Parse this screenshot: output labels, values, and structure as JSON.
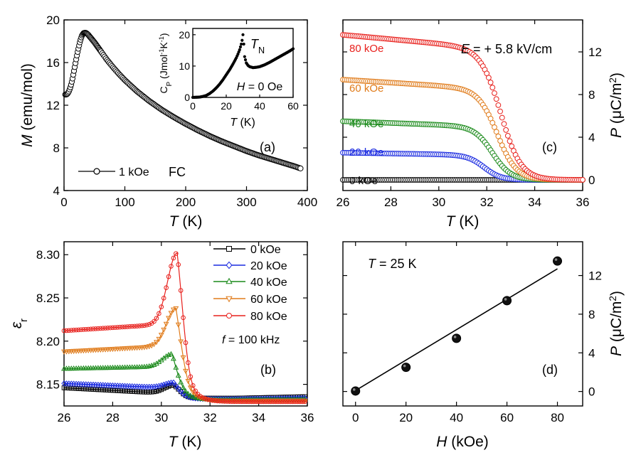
{
  "chart_data": [
    {
      "type": "scatter",
      "panel": "(a)",
      "xlabel": "T (K)",
      "ylabel": "M (emu/mol)",
      "xlim": [
        0,
        400
      ],
      "ylim": [
        4,
        20
      ],
      "xticks": [
        0,
        100,
        200,
        300,
        400
      ],
      "yticks": [
        4,
        8,
        12,
        16,
        20
      ],
      "legend": "1 kOe",
      "annotation": "FC",
      "series": [
        {
          "x": [
            2,
            4,
            6,
            8,
            10,
            12,
            14,
            16,
            18,
            20,
            22,
            24,
            26,
            28,
            30,
            32,
            34,
            36,
            38,
            40,
            42,
            45,
            50,
            55,
            60,
            70,
            80,
            90,
            100,
            120,
            140,
            160,
            180,
            200,
            220,
            240,
            260,
            280,
            300,
            320,
            340,
            360,
            380,
            390
          ],
          "y": [
            13.0,
            13.0,
            13.1,
            13.3,
            13.6,
            14.0,
            14.5,
            15.1,
            15.7,
            16.3,
            16.9,
            17.4,
            17.9,
            18.3,
            18.6,
            18.75,
            18.8,
            18.78,
            18.7,
            18.6,
            18.45,
            18.25,
            17.9,
            17.5,
            17.1,
            16.3,
            15.6,
            14.95,
            14.35,
            13.3,
            12.4,
            11.6,
            10.9,
            10.25,
            9.65,
            9.1,
            8.6,
            8.15,
            7.7,
            7.3,
            6.95,
            6.6,
            6.25,
            6.05
          ]
        }
      ]
    },
    {
      "type": "line",
      "panel": "inset",
      "xlabel": "T (K)",
      "ylabel": "C_P (Jmol⁻¹K⁻¹)",
      "xlim": [
        0,
        60
      ],
      "ylim": [
        0,
        22
      ],
      "xticks": [
        0,
        20,
        40,
        60
      ],
      "yticks": [
        0,
        10,
        20
      ],
      "annotations": [
        "T_N",
        "H = 0 Oe"
      ],
      "series": [
        {
          "x": [
            0,
            4,
            6,
            8,
            10,
            12,
            14,
            16,
            18,
            20,
            22,
            24,
            26,
            27,
            28,
            29,
            29.5,
            30,
            30.5,
            31,
            32,
            33,
            34,
            36,
            38,
            40,
            43,
            46,
            50,
            54,
            58,
            60
          ],
          "y": [
            0,
            0.1,
            0.3,
            0.6,
            1.2,
            2.0,
            3.0,
            4.2,
            5.6,
            7.2,
            8.8,
            10.6,
            12.6,
            13.8,
            15.2,
            17.0,
            18.2,
            20.0,
            17.0,
            13.0,
            11.0,
            10.2,
            9.8,
            9.5,
            9.6,
            9.8,
            10.4,
            11.2,
            12.4,
            13.6,
            14.8,
            15.5
          ]
        }
      ]
    },
    {
      "type": "scatter",
      "panel": "(c)",
      "xlabel": "T (K)",
      "ylabel": "P (μC/m²)",
      "xlim": [
        26,
        36
      ],
      "ylim": [
        -1,
        15
      ],
      "xticks": [
        26,
        28,
        30,
        32,
        34,
        36
      ],
      "yticks": [
        0,
        4,
        8,
        12
      ],
      "annotation": "E = + 5.8 kV/cm",
      "series": [
        {
          "name": "80 kOe",
          "color": "#e8201c",
          "plateau": 13.6,
          "tc": 32.6,
          "w": 0.42
        },
        {
          "name": "60 kOe",
          "color": "#e07b1a",
          "plateau": 9.4,
          "tc": 32.45,
          "w": 0.4
        },
        {
          "name": "40 kOe",
          "color": "#1a8a1a",
          "plateau": 5.5,
          "tc": 32.25,
          "w": 0.38
        },
        {
          "name": "20 kOe",
          "color": "#1a2ae0",
          "plateau": 2.55,
          "tc": 31.9,
          "w": 0.35
        },
        {
          "name": "0 kOe",
          "color": "#000000",
          "plateau": 0.0,
          "tc": 31.5,
          "w": 0.3
        }
      ]
    },
    {
      "type": "scatter",
      "panel": "(b)",
      "xlabel": "T (K)",
      "ylabel": "ε_r",
      "xlim": [
        26,
        36
      ],
      "ylim": [
        8.125,
        8.315
      ],
      "xticks": [
        26,
        28,
        30,
        32,
        34,
        36
      ],
      "yticks": [
        8.15,
        8.2,
        8.25,
        8.3
      ],
      "annotation": "f = 100 kHz",
      "series": [
        {
          "name": "0 kOe",
          "color": "#000000",
          "marker": "square",
          "base": 8.146,
          "slope": -0.0015,
          "peak": 8.149,
          "tp": 30.5,
          "tail": 8.134,
          "tailslope": 0.0006
        },
        {
          "name": "20 kOe",
          "color": "#1a2ae0",
          "marker": "diamond",
          "base": 8.151,
          "slope": -0.0012,
          "peak": 8.152,
          "tp": 30.5,
          "tail": 8.133,
          "tailslope": 0.0004
        },
        {
          "name": "40 kOe",
          "color": "#1a8a1a",
          "marker": "triangle-up",
          "base": 8.168,
          "slope": 0.0006,
          "peak": 8.185,
          "tp": 30.45,
          "tail": 8.132,
          "tailslope": 0.0002
        },
        {
          "name": "60 kOe",
          "color": "#e07b1a",
          "marker": "triangle-down",
          "base": 8.188,
          "slope": 0.0015,
          "peak": 8.238,
          "tp": 30.6,
          "tail": 8.131,
          "tailslope": 0.0001
        },
        {
          "name": "80 kOe",
          "color": "#e8201c",
          "marker": "circle",
          "base": 8.212,
          "slope": 0.0018,
          "peak": 8.302,
          "tp": 30.65,
          "tail": 8.13,
          "tailslope": 0.0
        }
      ]
    },
    {
      "type": "scatter",
      "panel": "(d)",
      "xlabel": "H (kOe)",
      "ylabel": "P (μC/m²)",
      "xlim": [
        -5,
        90
      ],
      "ylim": [
        -1.5,
        15.5
      ],
      "xticks": [
        0,
        20,
        40,
        60,
        80
      ],
      "yticks": [
        0,
        4,
        8,
        12
      ],
      "annotation": "T = 25 K",
      "points": {
        "x": [
          0,
          20,
          40,
          60,
          80
        ],
        "y": [
          0.05,
          2.5,
          5.5,
          9.4,
          13.5
        ]
      },
      "fit": {
        "x": [
          0,
          80
        ],
        "y": [
          0.1,
          12.7
        ]
      }
    }
  ]
}
